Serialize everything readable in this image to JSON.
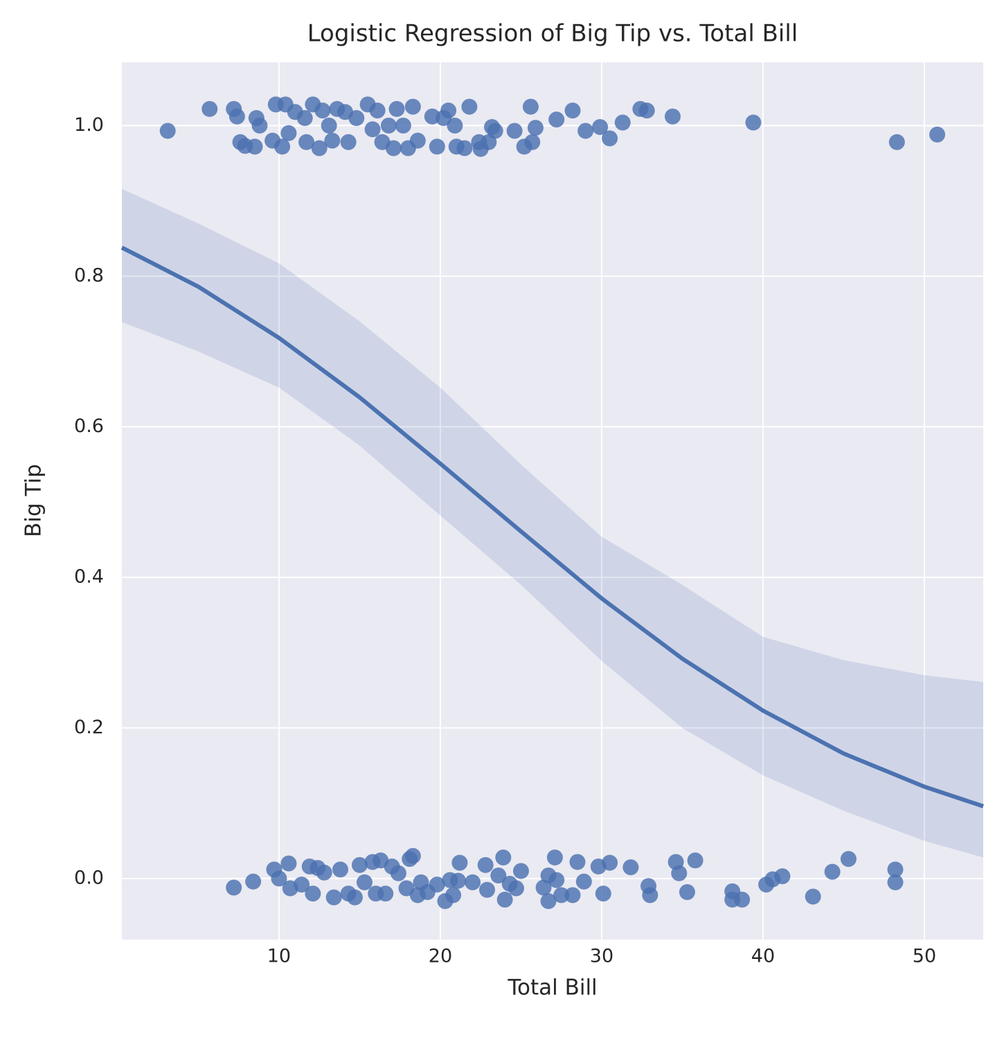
{
  "chart_data": {
    "type": "scatter",
    "title": "Logistic Regression of Big Tip vs. Total Bill",
    "x_label": "Total Bill",
    "y_label": "Big Tip",
    "xlim": [
      0.26,
      53.65
    ],
    "ylim": [
      -0.081,
      1.084
    ],
    "xticks": [
      10,
      20,
      30,
      40,
      50
    ],
    "yticks": [
      {
        "value": 0,
        "label": "0.0"
      },
      0.2,
      0.4,
      0.6,
      0.8,
      {
        "value": 1,
        "label": "1.0"
      }
    ],
    "grid": true,
    "color": "#4c72b0",
    "points": {
      "x": [
        3.1,
        5.7,
        7.2,
        7.4,
        7.6,
        7.9,
        8.5,
        8.6,
        8.8,
        9.8,
        9.6,
        10.2,
        10.4,
        10.6,
        11.0,
        11.6,
        11.7,
        12.1,
        12.5,
        12.7,
        13.1,
        13.3,
        13.6,
        14.1,
        14.3,
        14.8,
        15.5,
        15.8,
        16.1,
        16.4,
        16.8,
        17.1,
        17.3,
        17.7,
        18.0,
        18.3,
        18.6,
        19.5,
        19.8,
        20.2,
        20.5,
        20.9,
        21.0,
        21.5,
        21.8,
        22.4,
        22.5,
        23.0,
        23.2,
        23.4,
        24.6,
        25.2,
        25.6,
        25.7,
        25.9,
        27.2,
        28.2,
        29.0,
        29.9,
        30.5,
        31.3,
        32.4,
        32.8,
        34.4,
        39.4,
        48.3,
        50.8,
        7.2,
        8.4,
        9.7,
        10.0,
        10.6,
        10.7,
        11.4,
        11.9,
        12.1,
        12.4,
        12.8,
        13.4,
        13.8,
        14.3,
        14.7,
        15.0,
        15.3,
        15.8,
        16.0,
        16.3,
        16.6,
        17.0,
        17.4,
        17.9,
        18.1,
        18.3,
        18.6,
        18.8,
        19.2,
        19.8,
        20.3,
        20.6,
        20.8,
        21.1,
        21.2,
        22.0,
        22.8,
        22.9,
        23.6,
        23.9,
        24.0,
        24.3,
        24.7,
        25.0,
        26.4,
        26.7,
        26.7,
        27.1,
        27.2,
        27.5,
        28.2,
        28.5,
        28.9,
        29.8,
        30.1,
        30.5,
        31.8,
        32.9,
        33.0,
        34.6,
        34.8,
        35.3,
        35.8,
        38.1,
        38.1,
        38.7,
        40.2,
        40.6,
        41.2,
        43.1,
        44.3,
        45.3,
        48.2,
        48.2
      ],
      "values": [
        0.993,
        1.022,
        1.022,
        1.012,
        0.978,
        0.973,
        0.972,
        1.01,
        1.0,
        1.028,
        0.98,
        0.972,
        1.028,
        0.99,
        1.018,
        1.01,
        0.978,
        1.028,
        0.97,
        1.02,
        1.0,
        0.98,
        1.022,
        1.018,
        0.978,
        1.01,
        1.028,
        0.995,
        1.02,
        0.978,
        1.0,
        0.97,
        1.022,
        1.0,
        0.97,
        1.025,
        0.98,
        1.012,
        0.972,
        1.01,
        1.02,
        1.0,
        0.972,
        0.97,
        1.025,
        0.978,
        0.969,
        0.978,
        0.998,
        0.993,
        0.993,
        0.972,
        1.025,
        0.978,
        0.997,
        1.008,
        1.02,
        0.993,
        0.998,
        0.983,
        1.004,
        1.022,
        1.02,
        1.012,
        1.004,
        0.978,
        0.988,
        -0.012,
        -0.004,
        0.012,
        0.0,
        0.02,
        -0.013,
        -0.008,
        0.016,
        -0.02,
        0.014,
        0.008,
        -0.025,
        0.012,
        -0.02,
        -0.025,
        0.018,
        -0.005,
        0.022,
        -0.02,
        0.024,
        -0.02,
        0.016,
        0.007,
        -0.013,
        0.026,
        0.03,
        -0.022,
        -0.005,
        -0.018,
        -0.008,
        -0.03,
        -0.002,
        -0.022,
        -0.003,
        0.021,
        -0.005,
        0.018,
        -0.015,
        0.004,
        0.028,
        -0.028,
        -0.007,
        -0.013,
        0.01,
        -0.012,
        0.004,
        -0.03,
        0.028,
        -0.002,
        -0.022,
        -0.022,
        0.022,
        -0.004,
        0.016,
        -0.02,
        0.021,
        0.015,
        -0.01,
        -0.022,
        0.022,
        0.007,
        -0.018,
        0.024,
        -0.017,
        -0.028,
        -0.028,
        -0.008,
        -0.001,
        0.003,
        -0.024,
        0.009,
        0.026,
        0.012,
        -0.005
      ]
    },
    "fit": {
      "x": [
        0.26,
        5,
        10,
        15,
        20,
        25,
        30,
        35,
        40,
        45,
        50,
        53.65
      ],
      "values": [
        0.838,
        0.786,
        0.718,
        0.639,
        0.551,
        0.461,
        0.372,
        0.292,
        0.223,
        0.166,
        0.122,
        0.096
      ],
      "ci_upper": [
        0.916,
        0.87,
        0.817,
        0.74,
        0.652,
        0.55,
        0.454,
        0.39,
        0.321,
        0.29,
        0.27,
        0.261
      ],
      "ci_lower": [
        0.739,
        0.7,
        0.652,
        0.575,
        0.482,
        0.39,
        0.289,
        0.2,
        0.137,
        0.09,
        0.05,
        0.028
      ]
    }
  }
}
